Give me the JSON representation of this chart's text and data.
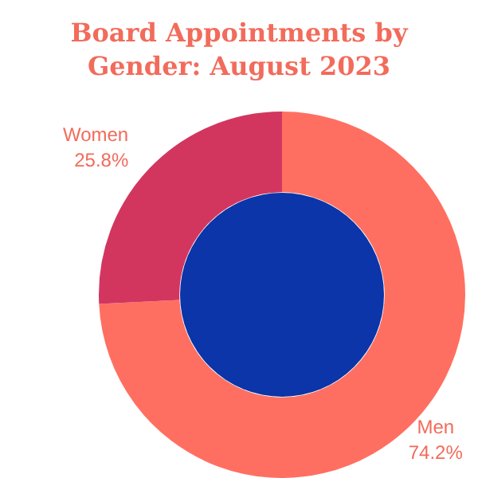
{
  "chart_data": {
    "type": "donut",
    "title": "Board Appointments by Gender: August 2023",
    "categories": [
      "Men",
      "Women"
    ],
    "values": [
      74.2,
      25.8
    ],
    "colors": [
      "#ff6f61",
      "#d2365f"
    ],
    "value_labels": [
      "74.2%",
      "25.8%"
    ],
    "legend": false
  }
}
